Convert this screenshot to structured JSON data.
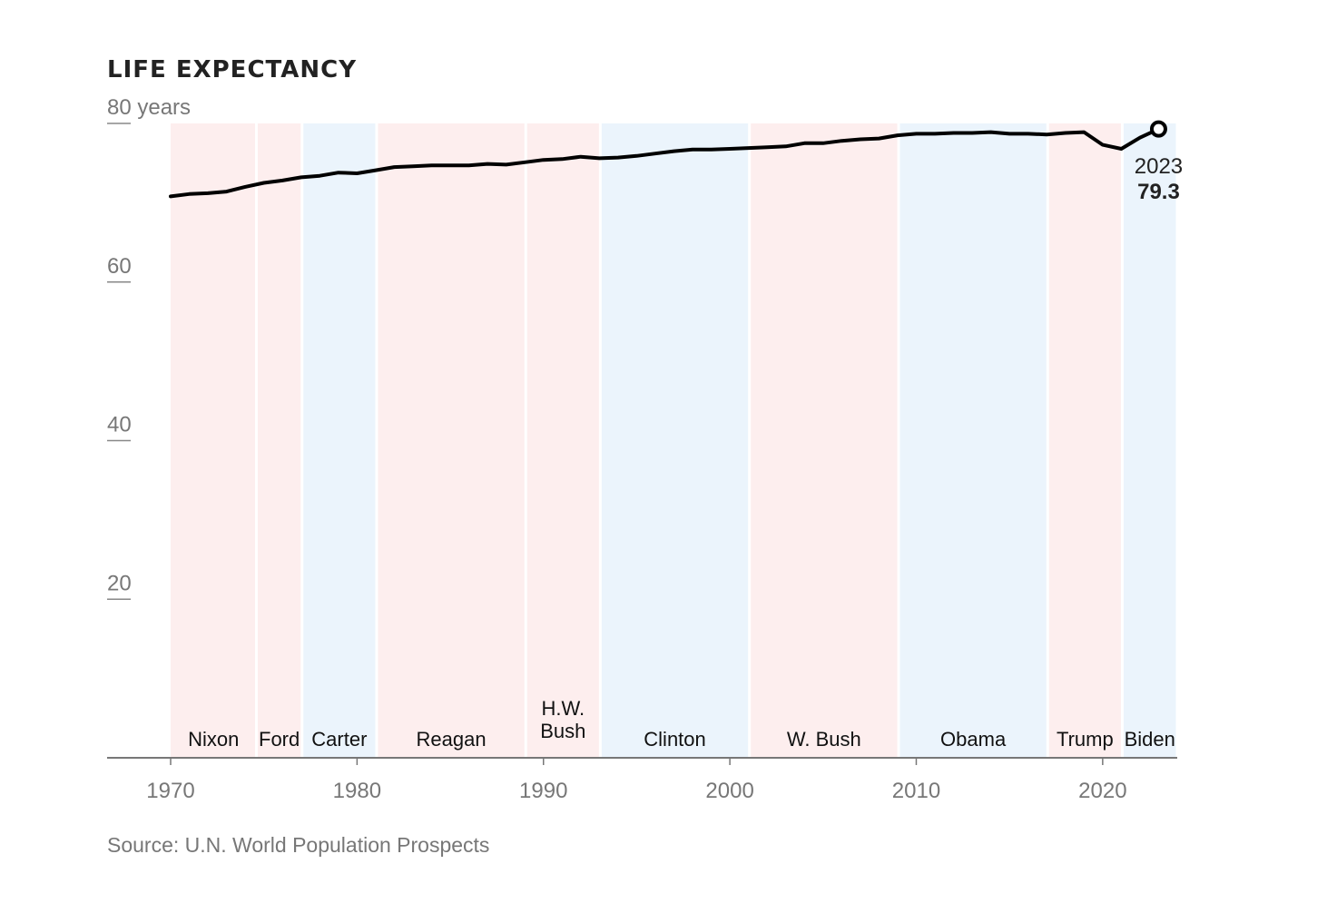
{
  "chart_data": {
    "type": "line",
    "title": "LIFE EXPECTANCY",
    "ylabel": "",
    "y_unit": "years",
    "ylim": [
      0,
      80
    ],
    "xlim": [
      1966.6,
      2024
    ],
    "y_ticks": [
      {
        "value": 80,
        "label": "80 years"
      },
      {
        "value": 60,
        "label": "60"
      },
      {
        "value": 40,
        "label": "40"
      },
      {
        "value": 20,
        "label": "20"
      }
    ],
    "x_ticks": [
      {
        "value": 1970,
        "label": "1970"
      },
      {
        "value": 1980,
        "label": "1980"
      },
      {
        "value": 1990,
        "label": "1990"
      },
      {
        "value": 2000,
        "label": "2000"
      },
      {
        "value": 2010,
        "label": "2010"
      },
      {
        "value": 2020,
        "label": "2020"
      }
    ],
    "presidencies": [
      {
        "name": "Nixon",
        "start": 1970,
        "end": 1974.6,
        "party": "R"
      },
      {
        "name": "Ford",
        "start": 1974.6,
        "end": 1977.05,
        "party": "R"
      },
      {
        "name": "Carter",
        "start": 1977.05,
        "end": 1981.05,
        "party": "D"
      },
      {
        "name": "Reagan",
        "start": 1981.05,
        "end": 1989.05,
        "party": "R"
      },
      {
        "name": "H.W. Bush",
        "lines": [
          "H.W.",
          "Bush"
        ],
        "start": 1989.05,
        "end": 1993.05,
        "party": "R"
      },
      {
        "name": "Clinton",
        "start": 1993.05,
        "end": 2001.05,
        "party": "D"
      },
      {
        "name": "W. Bush",
        "start": 2001.05,
        "end": 2009.05,
        "party": "R"
      },
      {
        "name": "Obama",
        "start": 2009.05,
        "end": 2017.05,
        "party": "D"
      },
      {
        "name": "Trump",
        "start": 2017.05,
        "end": 2021.05,
        "party": "R"
      },
      {
        "name": "Biden",
        "start": 2021.05,
        "end": 2024,
        "party": "D"
      }
    ],
    "party_colors": {
      "R": "#fdeeee",
      "D": "#ebf4fc"
    },
    "series": [
      {
        "color": "#000000",
        "x": [
          1970,
          1971,
          1972,
          1973,
          1974,
          1975,
          1976,
          1977,
          1978,
          1979,
          1980,
          1981,
          1982,
          1983,
          1984,
          1985,
          1986,
          1987,
          1988,
          1989,
          1990,
          1991,
          1992,
          1993,
          1994,
          1995,
          1996,
          1997,
          1998,
          1999,
          2000,
          2001,
          2002,
          2003,
          2004,
          2005,
          2006,
          2007,
          2008,
          2009,
          2010,
          2011,
          2012,
          2013,
          2014,
          2015,
          2016,
          2017,
          2018,
          2019,
          2020,
          2021,
          2022,
          2023
        ],
        "values": [
          70.8,
          71.1,
          71.2,
          71.4,
          72.0,
          72.5,
          72.8,
          73.2,
          73.4,
          73.8,
          73.7,
          74.1,
          74.5,
          74.6,
          74.7,
          74.7,
          74.7,
          74.9,
          74.8,
          75.1,
          75.4,
          75.5,
          75.8,
          75.6,
          75.7,
          75.9,
          76.2,
          76.5,
          76.7,
          76.7,
          76.8,
          76.9,
          77.0,
          77.1,
          77.5,
          77.5,
          77.8,
          78.0,
          78.1,
          78.5,
          78.7,
          78.7,
          78.8,
          78.8,
          78.9,
          78.7,
          78.7,
          78.6,
          78.8,
          78.9,
          77.3,
          76.8,
          78.2,
          79.3
        ]
      }
    ],
    "annotation": {
      "x": 2023,
      "y": 79.3,
      "year_label": "2023",
      "value_label": "79.3"
    },
    "source": "Source: U.N. World Population Prospects"
  }
}
